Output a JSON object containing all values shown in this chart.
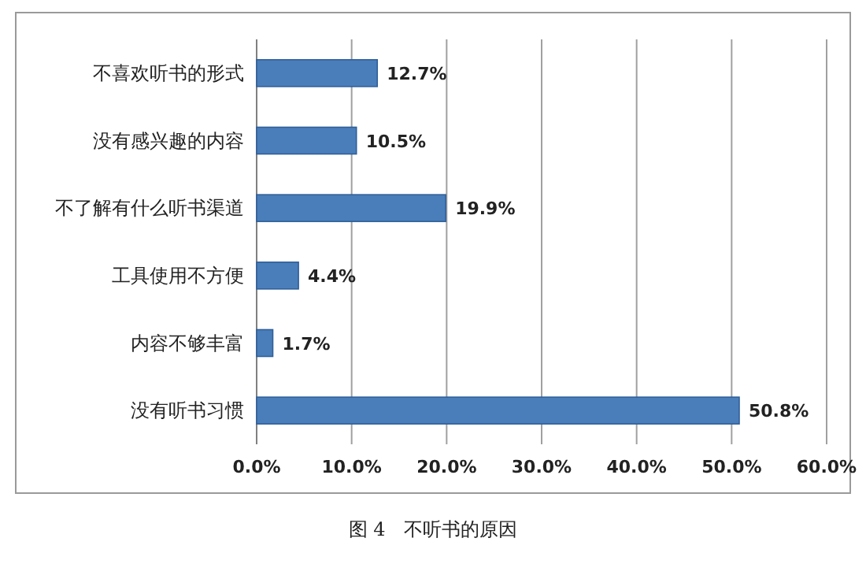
{
  "chart_data": {
    "type": "bar",
    "orientation": "horizontal",
    "categories": [
      "不喜欢听书的形式",
      "没有感兴趣的内容",
      "不了解有什么听书渠道",
      "工具使用不方便",
      "内容不够丰富",
      "没有听书习惯"
    ],
    "values": [
      12.7,
      10.5,
      19.9,
      4.4,
      1.7,
      50.8
    ],
    "value_labels": [
      "12.7%",
      "10.5%",
      "19.9%",
      "4.4%",
      "1.7%",
      "50.8%"
    ],
    "color": "#4a7ebb",
    "xlim": [
      0,
      60
    ],
    "xticks": [
      {
        "value": 0,
        "label": "0.0%"
      },
      {
        "value": 10,
        "label": "10.0%"
      },
      {
        "value": 20,
        "label": "20.0%"
      },
      {
        "value": 30,
        "label": "30.0%"
      },
      {
        "value": 40,
        "label": "40.0%"
      },
      {
        "value": 50,
        "label": "50.0%"
      },
      {
        "value": 60,
        "label": "60.0%"
      }
    ],
    "grid": "x",
    "annotations": [
      "图 4　不听书的原因"
    ]
  }
}
